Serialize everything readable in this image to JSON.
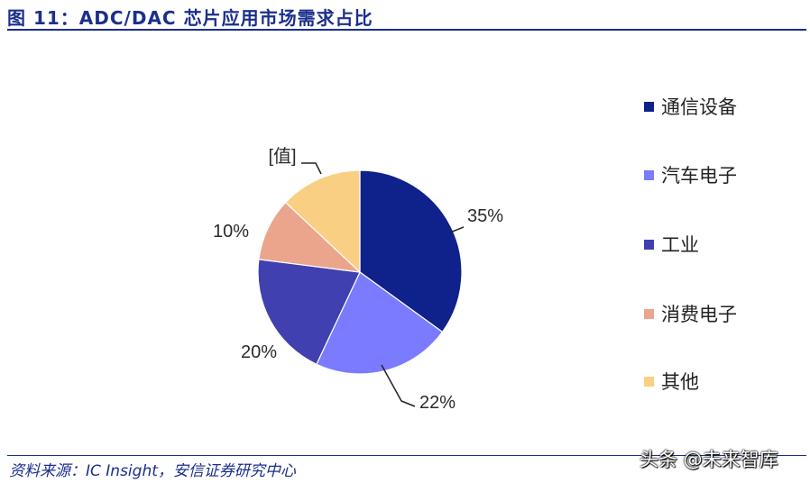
{
  "figure_title": "图 11：ADC/DAC 芯片应用市场需求占比",
  "source": "资料来源：IC Insight，安信证券研究中心",
  "watermark": "头条 @未来智库",
  "chart_data": {
    "type": "pie",
    "categories": [
      "通信设备",
      "汽车电子",
      "工业",
      "消费电子",
      "其他"
    ],
    "values": [
      35,
      22,
      20,
      10,
      13
    ],
    "labels": [
      "35%",
      "22%",
      "20%",
      "10%",
      "[值]"
    ],
    "colors": [
      "#0f218a",
      "#7b7bff",
      "#4040b0",
      "#eba58c",
      "#f9d083"
    ],
    "legend_position": "right"
  }
}
